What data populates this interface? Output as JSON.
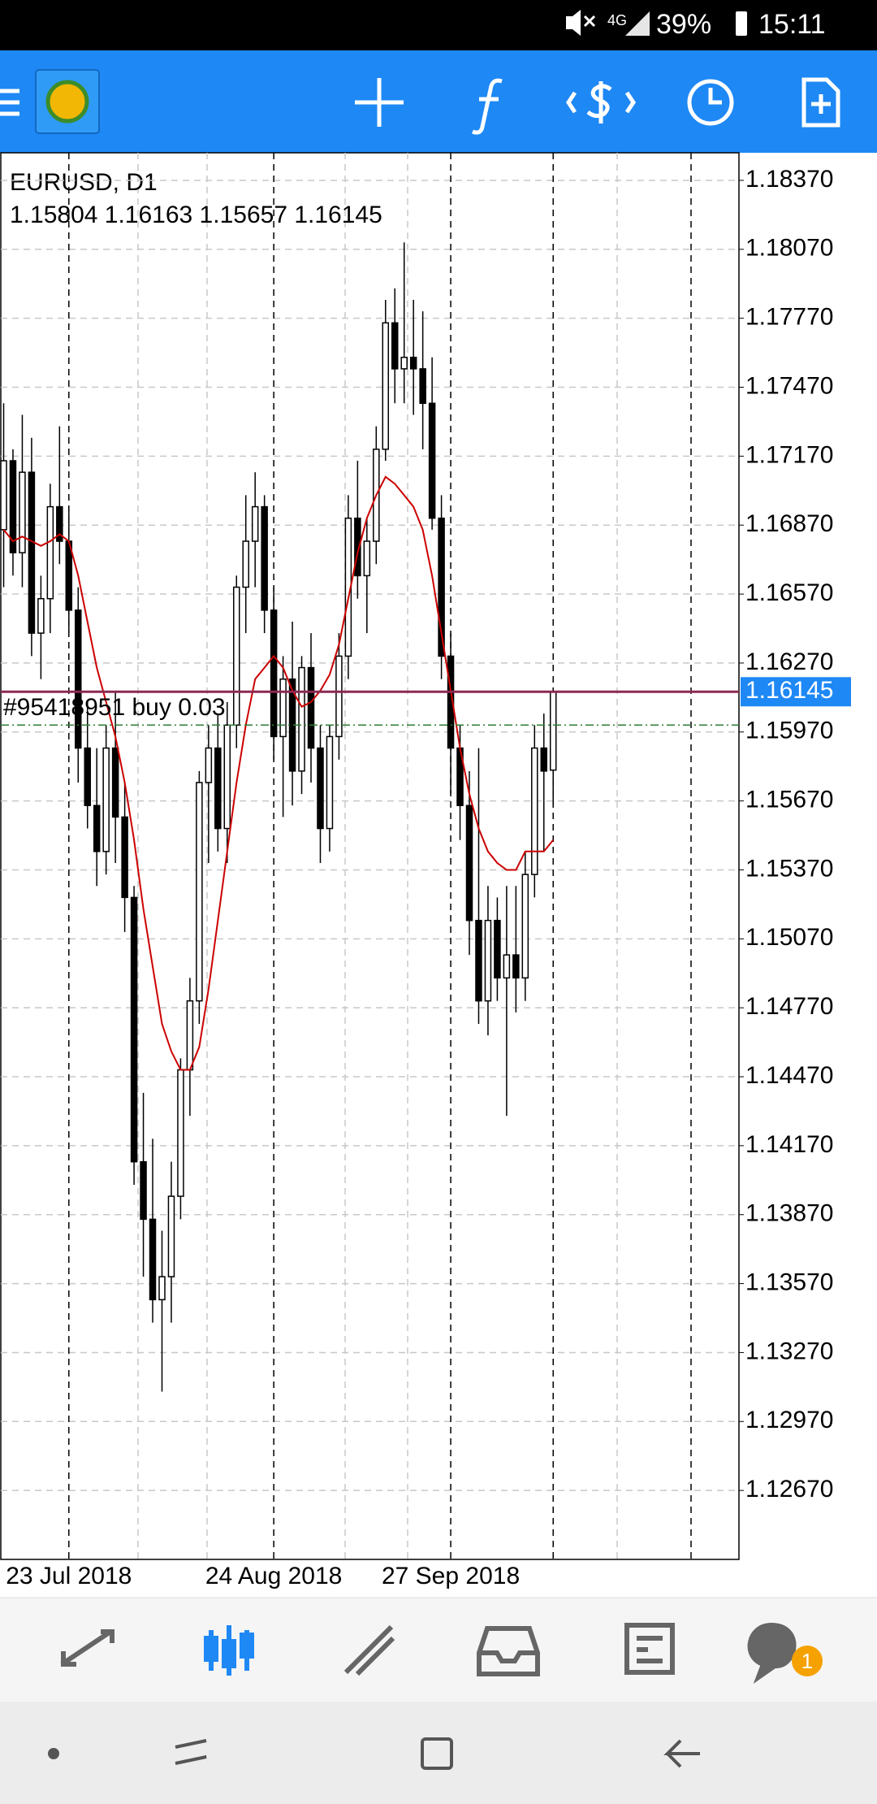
{
  "status_bar": {
    "network": "4G",
    "battery": "39%",
    "time": "15:11"
  },
  "bottom_nav": {
    "badge": "1"
  },
  "chart_data": {
    "type": "candlestick",
    "title": "EURUSD, D1",
    "ohlc_text": "1.15804 1.16163 1.15657 1.16145",
    "categories": [
      null,
      null,
      null,
      null,
      null,
      null,
      null,
      "23 Jul 2018",
      null,
      null,
      null,
      null,
      null,
      null,
      null,
      null,
      null,
      null,
      null,
      null,
      null,
      null,
      null,
      null,
      null,
      null,
      null,
      null,
      null,
      "24 Aug 2018",
      null,
      null,
      null,
      null,
      null,
      null,
      null,
      null,
      null,
      null,
      null,
      null,
      null,
      null,
      null,
      null,
      null,
      null,
      "27 Sep 2018",
      null,
      null,
      null,
      null,
      null,
      null,
      null,
      null,
      null,
      null,
      null
    ],
    "open": [
      1.1685,
      1.1715,
      1.1675,
      1.171,
      1.164,
      1.1655,
      1.1695,
      1.168,
      1.165,
      1.159,
      1.1565,
      1.1545,
      1.159,
      1.156,
      1.1525,
      1.141,
      1.1385,
      1.135,
      1.136,
      1.1395,
      1.145,
      1.148,
      1.1575,
      1.159,
      1.1555,
      1.16,
      1.166,
      1.168,
      1.1695,
      1.165,
      1.1595,
      1.162,
      1.158,
      1.1625,
      1.159,
      1.1555,
      1.1595,
      1.163,
      1.169,
      1.1665,
      1.168,
      1.172,
      1.1775,
      1.1755,
      1.176,
      1.1755,
      1.174,
      1.169,
      1.163,
      1.159,
      1.1565,
      1.1515,
      1.148,
      1.1515,
      1.149,
      1.15,
      1.149,
      1.1535,
      1.159,
      1.15804
    ],
    "high": [
      1.174,
      1.172,
      1.1735,
      1.1725,
      1.1665,
      1.1705,
      1.173,
      1.1695,
      1.166,
      1.161,
      1.159,
      1.16,
      1.1615,
      1.1575,
      1.153,
      1.144,
      1.142,
      1.138,
      1.141,
      1.1455,
      1.149,
      1.158,
      1.16,
      1.1605,
      1.161,
      1.1665,
      1.17,
      1.171,
      1.17,
      1.166,
      1.163,
      1.1645,
      1.163,
      1.164,
      1.16,
      1.16,
      1.164,
      1.17,
      1.1715,
      1.169,
      1.173,
      1.1785,
      1.179,
      1.181,
      1.1785,
      1.178,
      1.176,
      1.17,
      1.164,
      1.16,
      1.158,
      1.159,
      1.153,
      1.1525,
      1.153,
      1.153,
      1.1545,
      1.16,
      1.1605,
      1.16163
    ],
    "low": [
      1.166,
      1.1665,
      1.166,
      1.163,
      1.162,
      1.164,
      1.167,
      1.164,
      1.1575,
      1.1555,
      1.153,
      1.1535,
      1.154,
      1.151,
      1.14,
      1.136,
      1.134,
      1.131,
      1.134,
      1.1385,
      1.143,
      1.147,
      1.154,
      1.1545,
      1.154,
      1.159,
      1.164,
      1.166,
      1.164,
      1.1585,
      1.156,
      1.1565,
      1.157,
      1.1575,
      1.154,
      1.1545,
      1.1585,
      1.162,
      1.1655,
      1.164,
      1.167,
      1.1715,
      1.174,
      1.174,
      1.1735,
      1.172,
      1.1685,
      1.162,
      1.157,
      1.155,
      1.15,
      1.147,
      1.1465,
      1.148,
      1.143,
      1.1475,
      1.148,
      1.1525,
      1.1545,
      1.15657
    ],
    "close": [
      1.1715,
      1.1675,
      1.171,
      1.164,
      1.1655,
      1.1695,
      1.168,
      1.165,
      1.159,
      1.1565,
      1.1545,
      1.159,
      1.156,
      1.1525,
      1.141,
      1.1385,
      1.135,
      1.136,
      1.1395,
      1.145,
      1.148,
      1.1575,
      1.159,
      1.1555,
      1.16,
      1.166,
      1.168,
      1.1695,
      1.165,
      1.1595,
      1.162,
      1.158,
      1.1625,
      1.159,
      1.1555,
      1.1595,
      1.163,
      1.169,
      1.1665,
      1.168,
      1.172,
      1.1775,
      1.1755,
      1.176,
      1.1755,
      1.174,
      1.169,
      1.163,
      1.159,
      1.1565,
      1.1515,
      1.148,
      1.1515,
      1.149,
      1.15,
      1.149,
      1.1535,
      1.159,
      1.158,
      1.16145
    ],
    "color": "#000000",
    "ma": {
      "color": "#cc0000",
      "values": [
        1.1685,
        1.168,
        1.1682,
        1.168,
        1.1678,
        1.168,
        1.1683,
        1.168,
        1.1665,
        1.1645,
        1.1625,
        1.161,
        1.1595,
        1.1575,
        1.155,
        1.152,
        1.1495,
        1.147,
        1.1458,
        1.145,
        1.145,
        1.146,
        1.1485,
        1.1515,
        1.1545,
        1.1575,
        1.16,
        1.162,
        1.1625,
        1.163,
        1.1625,
        1.1615,
        1.1608,
        1.161,
        1.1615,
        1.1622,
        1.1635,
        1.1655,
        1.1675,
        1.169,
        1.17,
        1.1708,
        1.1705,
        1.17,
        1.1695,
        1.1685,
        1.1665,
        1.164,
        1.1615,
        1.159,
        1.157,
        1.1555,
        1.1545,
        1.154,
        1.1537,
        1.1537,
        1.1545,
        1.1545,
        1.1545,
        1.155
      ]
    },
    "bid": {
      "value": 1.16145,
      "label": "1.16145",
      "color": "#1e88f5"
    },
    "order": {
      "value": 1.16,
      "label": "#95418951 buy 0.03",
      "color": "#2e7d32"
    },
    "ylim": [
      1.1237,
      1.1849
    ],
    "yticks": [
      {
        "value": 1.1837,
        "label": "1.18370"
      },
      {
        "value": 1.1807,
        "label": "1.18070"
      },
      {
        "value": 1.1777,
        "label": "1.17770"
      },
      {
        "value": 1.1747,
        "label": "1.17470"
      },
      {
        "value": 1.1717,
        "label": "1.17170"
      },
      {
        "value": 1.1687,
        "label": "1.16870"
      },
      {
        "value": 1.1657,
        "label": "1.16570"
      },
      {
        "value": 1.1627,
        "label": "1.16270"
      },
      {
        "value": 1.1597,
        "label": "1.15970"
      },
      {
        "value": 1.1567,
        "label": "1.15670"
      },
      {
        "value": 1.1537,
        "label": "1.15370"
      },
      {
        "value": 1.1507,
        "label": "1.15070"
      },
      {
        "value": 1.1477,
        "label": "1.14770"
      },
      {
        "value": 1.1447,
        "label": "1.14470"
      },
      {
        "value": 1.1417,
        "label": "1.14170"
      },
      {
        "value": 1.1387,
        "label": "1.13870"
      },
      {
        "value": 1.1357,
        "label": "1.13570"
      },
      {
        "value": 1.1327,
        "label": "1.13270"
      },
      {
        "value": 1.1297,
        "label": "1.12970"
      },
      {
        "value": 1.1267,
        "label": "1.12670"
      }
    ],
    "grid": true
  }
}
